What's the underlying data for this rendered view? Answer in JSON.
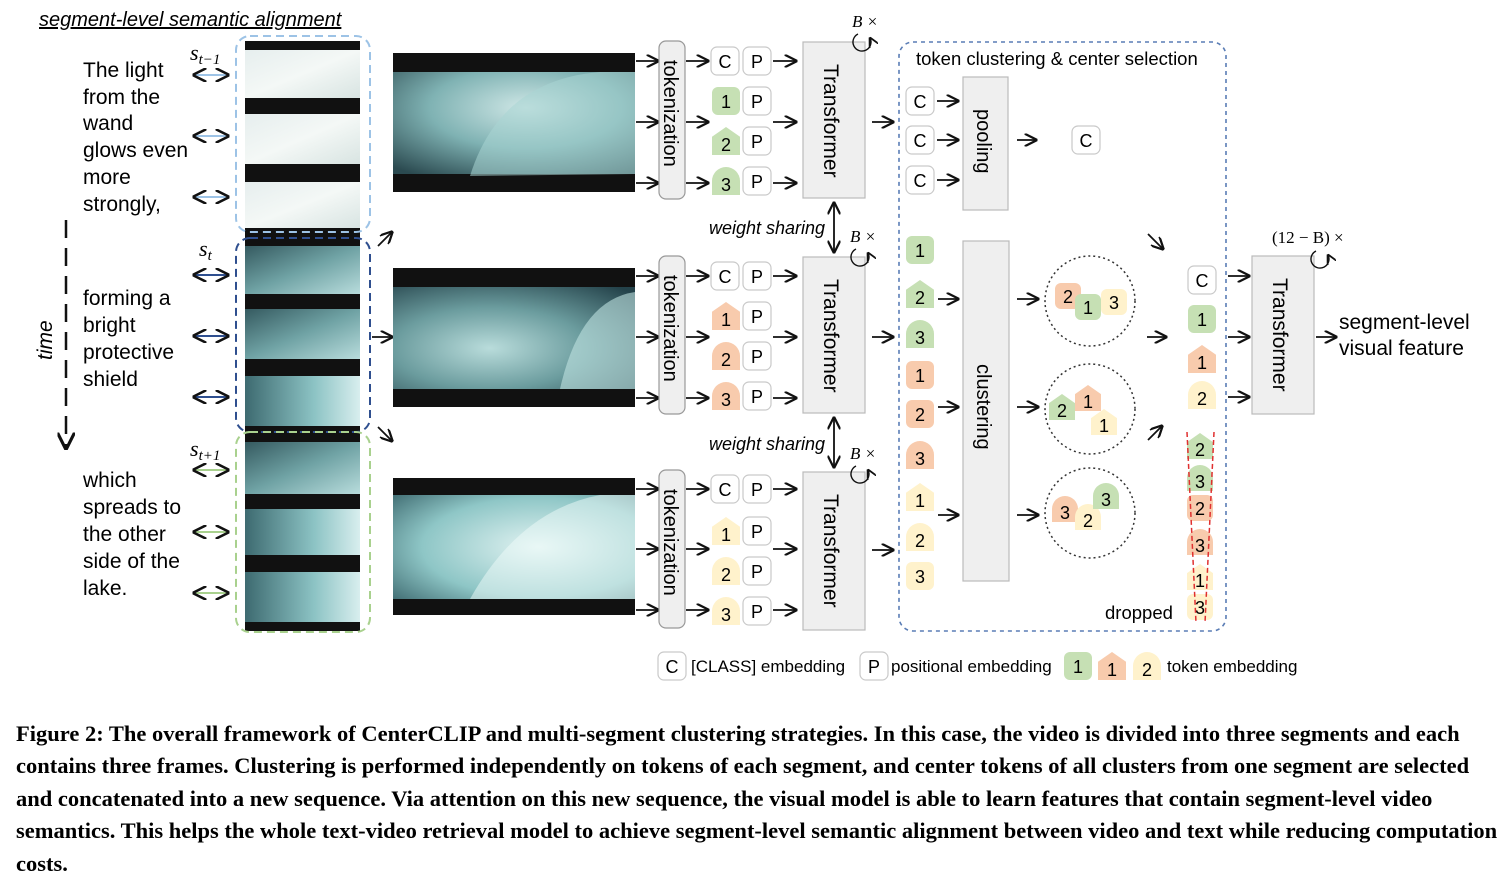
{
  "figure": {
    "alignment_title": "segment-level semantic alignment",
    "time_label": "time",
    "segments": [
      {
        "symbol": "s",
        "sub": "t−1",
        "text_lines": [
          "The light",
          "from the",
          "wand",
          "glows even",
          "more",
          "strongly,"
        ]
      },
      {
        "symbol": "s",
        "sub": "t",
        "text_lines": [
          "forming a",
          "bright",
          "protective",
          "shield"
        ]
      },
      {
        "symbol": "s",
        "sub": "t+1",
        "text_lines": [
          "which",
          "spreads to",
          "the other",
          "side of the",
          "lake."
        ]
      }
    ],
    "tokenization_label": "tokenization",
    "transformer_label": "Transformer",
    "weight_sharing_label": "weight sharing",
    "b_times_label": "B ×",
    "cluster_box_title": "token clustering & center selection",
    "pooling_label": "pooling",
    "clustering_label": "clustering",
    "dropped_label": "dropped",
    "final_transformer_label": "(12 − B) ×",
    "output_label_lines": [
      "segment-level",
      "visual feature"
    ],
    "token_C": "C",
    "token_P": "P",
    "token_numbers": [
      "1",
      "2",
      "3"
    ],
    "legend": {
      "class_label": "[CLASS] embedding",
      "pos_label": "positional embedding",
      "token_label": "token embedding"
    },
    "colors": {
      "green_token": "#c6e0b4",
      "orange_token": "#f8cbad",
      "yellow_token": "#fff2cc",
      "gray_box": "#efefef",
      "blue_dashed": "#9dc3e6",
      "navy_dashed": "#2f4f8f",
      "green_dashed": "#a9d18e",
      "dropped_line": "#e03030"
    }
  },
  "caption": "Figure 2: The overall framework of CenterCLIP and multi-segment clustering strategies. In this case, the video is divided into three segments and each contains three frames. Clustering is performed independently on tokens of each segment, and center tokens of all clusters from one segment are selected and concatenated into a new sequence. Via attention on this new sequence, the visual model is able to learn features that contain segment-level video semantics. This helps the whole text-video retrieval model to achieve segment-level semantic alignment between video and text while reducing computation costs."
}
